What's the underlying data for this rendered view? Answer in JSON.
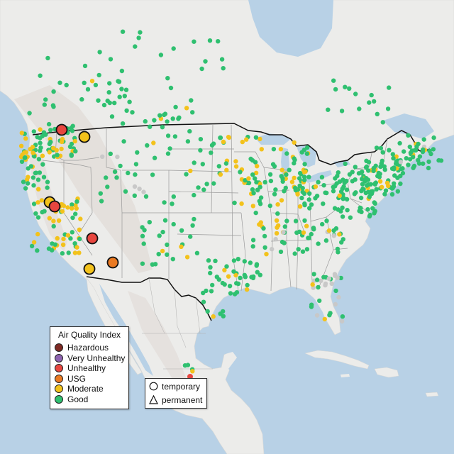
{
  "legend": {
    "title": "Air Quality Index",
    "items": [
      {
        "label": "Hazardous",
        "color": "#7e2a24"
      },
      {
        "label": "Very Unhealthy",
        "color": "#8e63b0"
      },
      {
        "label": "Unhealthy",
        "color": "#e8463f"
      },
      {
        "label": "USG",
        "color": "#ea7a22"
      },
      {
        "label": "Moderate",
        "color": "#f3c21b"
      },
      {
        "label": "Good",
        "color": "#2fc070"
      }
    ]
  },
  "monitor_types": {
    "items": [
      {
        "label": "temporary",
        "icon": "circle-outline-icon"
      },
      {
        "label": "permanent",
        "icon": "triangle-outline-icon"
      }
    ]
  },
  "colors": {
    "ocean": "#b8d1e6",
    "land": "#ececea",
    "mountain": "#e2ddd8",
    "no_data": "#c8c8c8"
  }
}
